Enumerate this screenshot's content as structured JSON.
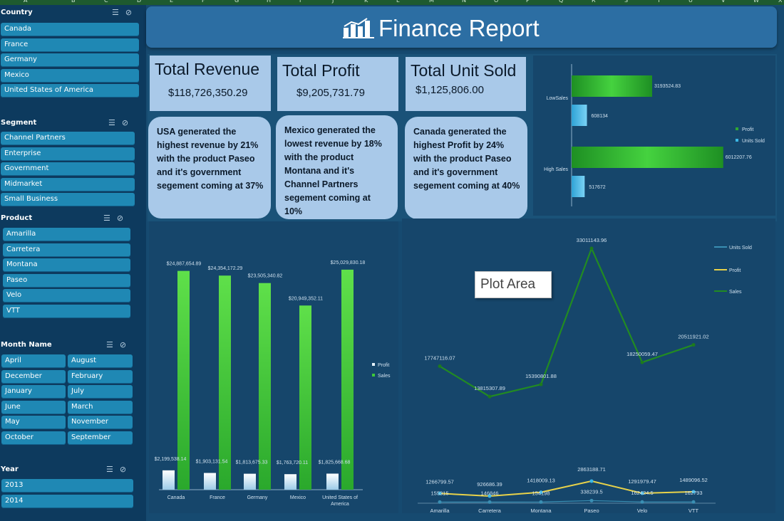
{
  "column_headers": [
    "A",
    "B",
    "C",
    "D",
    "E",
    "F",
    "G",
    "H",
    "I",
    "J",
    "K",
    "L",
    "M",
    "N",
    "O",
    "P",
    "Q",
    "R",
    "S",
    "T",
    "U",
    "V",
    "W",
    "X"
  ],
  "slicers": {
    "icon_multiselect": "☰",
    "icon_clear": "⊘",
    "country": {
      "title": "Country",
      "items": [
        "Canada",
        "France",
        "Germany",
        "Mexico",
        "United States of America"
      ]
    },
    "segment": {
      "title": "Segment",
      "items": [
        "Channel Partners",
        "Enterprise",
        "Government",
        "Midmarket",
        "Small Business"
      ]
    },
    "product": {
      "title": "Product",
      "items": [
        "Amarilla",
        "Carretera",
        "Montana",
        "Paseo",
        "Velo",
        "VTT"
      ]
    },
    "month": {
      "title": "Month Name",
      "items": [
        "April",
        "August",
        "December",
        "February",
        "January",
        "July",
        "June",
        "March",
        "May",
        "November",
        "October",
        "September"
      ]
    },
    "year": {
      "title": "Year",
      "items": [
        "2013",
        "2014"
      ]
    }
  },
  "header": {
    "title": "Finance Report"
  },
  "kpis": {
    "revenue": {
      "title": "Total Revenue",
      "value": "$118,726,350.29"
    },
    "profit": {
      "title": "Total Profit",
      "value": "$9,205,731.79"
    },
    "units": {
      "title": "Total Unit Sold",
      "value": "$1,125,806.00"
    }
  },
  "insights": {
    "revenue": "USA generated the highest revenue by 21% with the product Paseo and it's government segement coming at 37%",
    "profit": "Mexico generated the lowest revenue by 18% with the product Montana and it's Channel Partners segement coming at 10%",
    "units": "Canada generated the highest Profit by 24% with the product Paseo and it's government segement coming at 40%"
  },
  "tooltip": {
    "text": "Plot Area"
  },
  "colors": {
    "profit_green": "#2fa832",
    "sales_green": "#3ec93a",
    "units_blue": "#3bb8e6",
    "profit_yellow": "#e8d24a",
    "line_green": "#228b22"
  },
  "chart_data": [
    {
      "type": "bar",
      "orientation": "horizontal",
      "categories": [
        "LowSales",
        "High Sales"
      ],
      "series": [
        {
          "name": "Profit",
          "values": [
            3193524.83,
            6012207.76
          ]
        },
        {
          "name": "Units Sold",
          "values": [
            608134,
            517672
          ]
        }
      ],
      "labels": [
        [
          "3193524.83",
          "608134"
        ],
        [
          "6012207.76",
          "517672"
        ]
      ],
      "legend": "right"
    },
    {
      "type": "bar",
      "categories": [
        "Canada",
        "France",
        "Germany",
        "Mexico",
        "United States of America"
      ],
      "series": [
        {
          "name": "Profit",
          "values": [
            2199538.14,
            1903131.54,
            1813675.33,
            1763720.11,
            1825668.68
          ]
        },
        {
          "name": "Sales",
          "values": [
            24887654.89,
            24354172.29,
            23505340.82,
            20949352.11,
            25029830.18
          ]
        }
      ],
      "labels": {
        "Profit": [
          "$2,199,538.14",
          "$1,903,131.54",
          "$1,813,675.33",
          "$1,763,720.11",
          "$1,825,668.68"
        ],
        "Sales": [
          "$24,887,654.89",
          "$24,354,172.29",
          "$23,505,340.82",
          "$20,949,352.11",
          "$25,029,830.18"
        ]
      },
      "legend": "right"
    },
    {
      "type": "line",
      "categories": [
        "Amarilla",
        "Carretera",
        "Montana",
        "Paseo",
        "Velo",
        "VTT"
      ],
      "series": [
        {
          "name": "Units Sold",
          "values": [
            155315,
            146846,
            154198,
            338239.5,
            162424.5,
            162793
          ]
        },
        {
          "name": "Profit",
          "values": [
            1266799.57,
            926686.39,
            1418009.13,
            2863188.71,
            1291979.47,
            1489096.52
          ]
        },
        {
          "name": "Sales",
          "values": [
            17747116.07,
            13815307.89,
            15390801.88,
            33011143.96,
            18250059.47,
            20511921.02
          ]
        }
      ],
      "labels": {
        "Units Sold": [
          "155315",
          "146846",
          "154198",
          "338239.5",
          "162424.5",
          "162793"
        ],
        "Profit": [
          "1266799.57",
          "926686.39",
          "1418009.13",
          "2863188.71",
          "1291979.47",
          "1489096.52"
        ],
        "Sales": [
          "17747116.07",
          "13815307.89",
          "15390801.88",
          "33011143.96",
          "18250059.47",
          "20511921.02"
        ]
      },
      "legend": "right"
    }
  ]
}
